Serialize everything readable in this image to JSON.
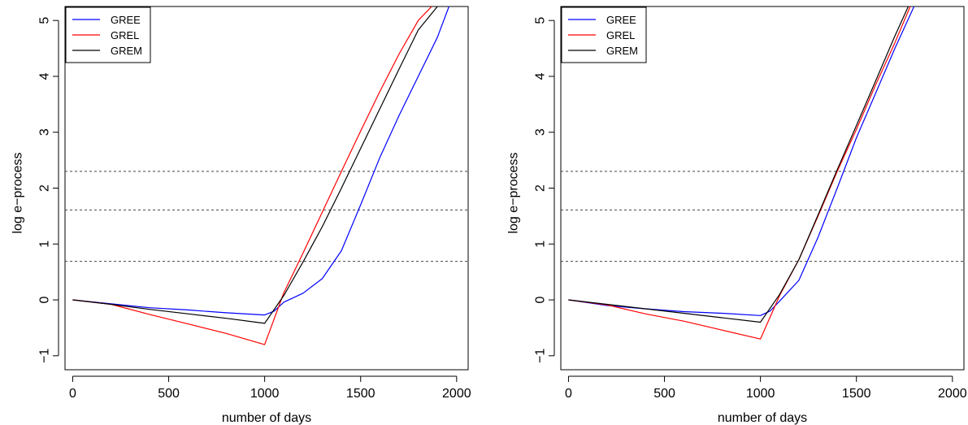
{
  "chart_data": [
    {
      "type": "line",
      "xlabel": "number of days",
      "ylabel": "log e−process",
      "xlim": [
        -40,
        2060
      ],
      "ylim": [
        -1.25,
        5.25
      ],
      "x_ticks": [
        0,
        500,
        1000,
        1500,
        2000
      ],
      "y_ticks": [
        -1,
        0,
        1,
        2,
        3,
        4,
        5
      ],
      "x_tick_labels": [
        "0",
        "500",
        "1000",
        "1500",
        "2000"
      ],
      "y_tick_labels": [
        "−1",
        "0",
        "1",
        "2",
        "3",
        "4",
        "5"
      ],
      "legend": {
        "position": "top-left",
        "entries": [
          "GREE",
          "GREL",
          "GREM"
        ]
      },
      "hlines": [
        0.69,
        1.61,
        2.3
      ],
      "series": [
        {
          "name": "GREE",
          "color": "#0000ff",
          "x": [
            0,
            200,
            400,
            600,
            800,
            1000,
            1050,
            1100,
            1200,
            1300,
            1400,
            1500,
            1600,
            1700,
            1800,
            1900,
            1960
          ],
          "y": [
            0,
            -0.07,
            -0.14,
            -0.18,
            -0.23,
            -0.27,
            -0.2,
            -0.04,
            0.12,
            0.38,
            0.88,
            1.7,
            2.55,
            3.3,
            4.0,
            4.7,
            5.25
          ]
        },
        {
          "name": "GREL",
          "color": "#ff0000",
          "x": [
            0,
            200,
            400,
            600,
            800,
            1000,
            1100,
            1200,
            1300,
            1400,
            1500,
            1600,
            1700,
            1800,
            1870
          ],
          "y": [
            0,
            -0.08,
            -0.26,
            -0.43,
            -0.6,
            -0.8,
            0.13,
            0.84,
            1.57,
            2.3,
            3.02,
            3.73,
            4.4,
            5.0,
            5.25
          ]
        },
        {
          "name": "GREM",
          "color": "#000000",
          "x": [
            0,
            200,
            400,
            600,
            800,
            1000,
            1100,
            1200,
            1300,
            1400,
            1500,
            1600,
            1700,
            1800,
            1900
          ],
          "y": [
            0,
            -0.08,
            -0.17,
            -0.25,
            -0.33,
            -0.42,
            0.08,
            0.68,
            1.31,
            2.0,
            2.71,
            3.42,
            4.13,
            4.83,
            5.25
          ]
        }
      ]
    },
    {
      "type": "line",
      "xlabel": "number of days",
      "ylabel": "log e−process",
      "xlim": [
        -40,
        2060
      ],
      "ylim": [
        -1.25,
        5.25
      ],
      "x_ticks": [
        0,
        500,
        1000,
        1500,
        2000
      ],
      "y_ticks": [
        -1,
        0,
        1,
        2,
        3,
        4,
        5
      ],
      "x_tick_labels": [
        "0",
        "500",
        "1000",
        "1500",
        "2000"
      ],
      "y_tick_labels": [
        "−1",
        "0",
        "1",
        "2",
        "3",
        "4",
        "5"
      ],
      "legend": {
        "position": "top-left",
        "entries": [
          "GREE",
          "GREL",
          "GREM"
        ]
      },
      "hlines": [
        0.69,
        1.61,
        2.3
      ],
      "series": [
        {
          "name": "GREE",
          "color": "#0000ff",
          "x": [
            0,
            200,
            400,
            600,
            800,
            1000,
            1050,
            1100,
            1200,
            1300,
            1400,
            1500,
            1600,
            1700,
            1800
          ],
          "y": [
            0,
            -0.1,
            -0.16,
            -0.21,
            -0.24,
            -0.28,
            -0.2,
            -0.02,
            0.35,
            1.12,
            2.0,
            2.9,
            3.7,
            4.5,
            5.25
          ]
        },
        {
          "name": "GREL",
          "color": "#ff0000",
          "x": [
            0,
            200,
            400,
            600,
            800,
            1000,
            1100,
            1200,
            1300,
            1400,
            1500,
            1600,
            1700,
            1780
          ],
          "y": [
            0,
            -0.09,
            -0.25,
            -0.38,
            -0.54,
            -0.7,
            0.08,
            0.72,
            1.5,
            2.3,
            3.05,
            3.85,
            4.6,
            5.25
          ]
        },
        {
          "name": "GREM",
          "color": "#000000",
          "x": [
            0,
            200,
            400,
            600,
            800,
            1000,
            1100,
            1200,
            1300,
            1400,
            1500,
            1600,
            1700,
            1770
          ],
          "y": [
            0,
            -0.08,
            -0.16,
            -0.24,
            -0.32,
            -0.4,
            0.1,
            0.72,
            1.52,
            2.33,
            3.12,
            3.92,
            4.72,
            5.25
          ]
        }
      ]
    }
  ]
}
